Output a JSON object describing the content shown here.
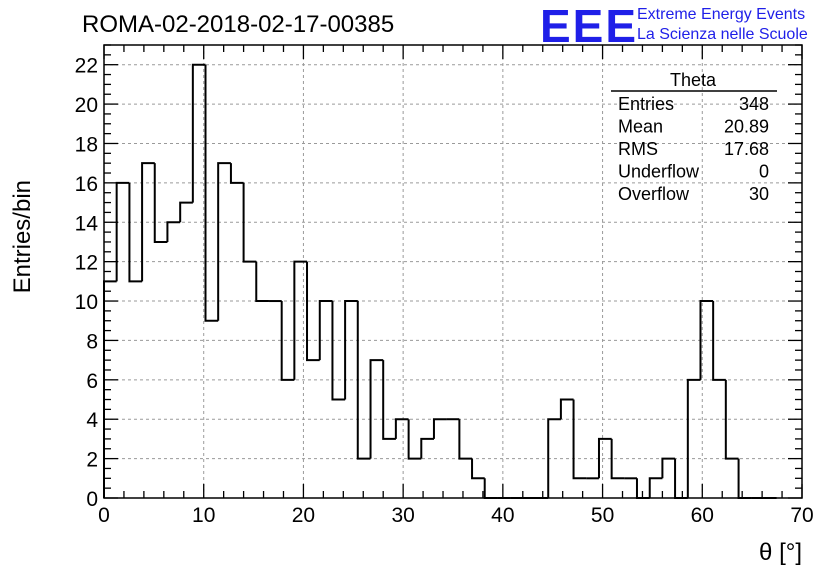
{
  "title": "ROMA-02-2018-02-17-00385",
  "logo": {
    "mark": "EEE",
    "line1": "Extreme Energy Events",
    "line2": "La Scienza nelle Scuole",
    "color": "#1f1fe8"
  },
  "stats": {
    "name": "Theta",
    "rows": [
      {
        "label": "Entries",
        "value": "348"
      },
      {
        "label": "Mean",
        "value": "20.89"
      },
      {
        "label": "RMS",
        "value": "17.68"
      },
      {
        "label": "Underflow",
        "value": "0"
      },
      {
        "label": "Overflow",
        "value": "30"
      }
    ]
  },
  "chart_data": {
    "type": "bar",
    "style": "step-histogram",
    "title": "ROMA-02-2018-02-17-00385",
    "xlabel": "θ [°]",
    "ylabel": "Entries/bin",
    "xlim": [
      0,
      70
    ],
    "ylim": [
      0,
      23
    ],
    "grid": true,
    "x_ticks": [
      0,
      10,
      20,
      30,
      40,
      50,
      60,
      70
    ],
    "y_ticks": [
      0,
      2,
      4,
      6,
      8,
      10,
      12,
      14,
      16,
      18,
      20,
      22
    ],
    "bin_width": 1.2727,
    "bin_lows": [
      0,
      1.27,
      2.55,
      3.82,
      5.09,
      6.36,
      7.64,
      8.91,
      10.18,
      11.45,
      12.73,
      14.0,
      15.27,
      16.55,
      17.82,
      19.09,
      20.36,
      21.64,
      22.91,
      24.18,
      25.45,
      26.73,
      28.0,
      29.27,
      30.55,
      31.82,
      33.09,
      34.36,
      35.64,
      36.91,
      38.18,
      39.45,
      40.73,
      42.0,
      43.27,
      44.55,
      45.82,
      47.09,
      48.36,
      49.64,
      50.91,
      52.18,
      53.45,
      54.73,
      56.0,
      57.27,
      58.55,
      59.82,
      61.09,
      62.36,
      63.64,
      64.91,
      66.18
    ],
    "values": [
      11,
      16,
      11,
      17,
      13,
      14,
      15,
      22,
      9,
      17,
      16,
      12,
      10,
      10,
      6,
      12,
      7,
      10,
      5,
      10,
      2,
      7,
      3,
      4,
      2,
      3,
      4,
      4,
      2,
      1,
      0,
      0,
      0,
      0,
      0,
      4,
      5,
      1,
      1,
      3,
      1,
      1,
      0,
      1,
      2,
      0,
      6,
      10,
      6,
      2,
      0,
      0,
      0
    ]
  },
  "colors": {
    "histogram_line": "#000000",
    "grid": "#9a9a9a"
  }
}
